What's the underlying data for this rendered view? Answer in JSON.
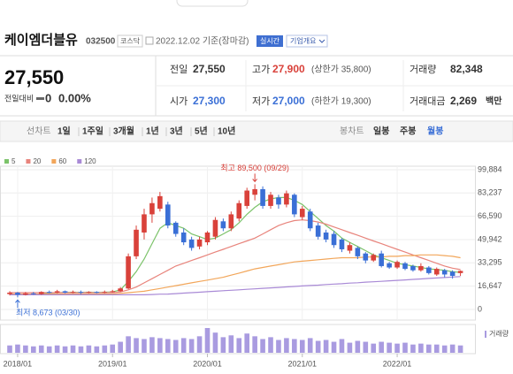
{
  "header": {
    "name": "케이엠더블유",
    "code": "032500",
    "market": "코스닥",
    "date": "2022.12.02 기준(장마감)",
    "realtime": "실시간",
    "overview": "기업개요"
  },
  "quote": {
    "price": "27,550",
    "change_label": "전일대비",
    "change": "0",
    "change_pct": "0.00%"
  },
  "table": {
    "rows": [
      [
        [
          "전일",
          "27,550"
        ],
        [
          "고가",
          "27,900",
          "(상한가 35,800)"
        ],
        [
          "거래량",
          "82,348"
        ]
      ],
      [
        [
          "시가",
          "27,300"
        ],
        [
          "저가",
          "27,000",
          "(하한가 19,300)"
        ],
        [
          "거래대금",
          "2,269",
          "백만"
        ]
      ]
    ]
  },
  "tabs": {
    "line": "선차트",
    "periods": [
      "1일",
      "1주일",
      "3개월",
      "1년",
      "3년",
      "5년",
      "10년"
    ],
    "candle": "봉차트",
    "candle_periods": [
      "일봉",
      "주봉",
      "월봉"
    ]
  },
  "chart_data": {
    "type": "candlestick",
    "categories": [
      null,
      "2018/01",
      null,
      null,
      null,
      null,
      null,
      null,
      null,
      null,
      null,
      null,
      null,
      "2019/01",
      null,
      null,
      null,
      null,
      null,
      null,
      null,
      null,
      null,
      null,
      null,
      "2020/01",
      null,
      null,
      null,
      null,
      null,
      null,
      null,
      null,
      null,
      null,
      null,
      "2021/01",
      null,
      null,
      null,
      null,
      null,
      null,
      null,
      null,
      null,
      null,
      null,
      "2022/01",
      null,
      null,
      null,
      null,
      null,
      null,
      null,
      null
    ],
    "ohlc": {
      "up_color": "#d9413a",
      "down_color": "#3a6fd6",
      "open": [
        11000,
        12000,
        10500,
        11500,
        11000,
        12500,
        12000,
        13000,
        12000,
        12500,
        12000,
        12500,
        12000,
        12500,
        13000,
        15000,
        38000,
        55000,
        68000,
        72000,
        75000,
        62000,
        55000,
        50000,
        45000,
        48000,
        52000,
        63000,
        58000,
        65000,
        74000,
        82000,
        86000,
        74000,
        80000,
        75000,
        82000,
        66000,
        70000,
        60000,
        55000,
        54000,
        50000,
        42000,
        44000,
        40000,
        35000,
        40000,
        33000,
        30000,
        33000,
        31000,
        28000,
        30000,
        25000,
        28000,
        27000,
        26000
      ],
      "high": [
        13000,
        12500,
        12500,
        12500,
        13000,
        13500,
        14000,
        13500,
        13500,
        13500,
        13000,
        13000,
        13500,
        14000,
        16000,
        40000,
        60000,
        72000,
        80000,
        84000,
        77000,
        63000,
        58000,
        52000,
        52000,
        56000,
        66000,
        65000,
        70000,
        78000,
        87000,
        89500,
        88000,
        84000,
        82000,
        85000,
        83000,
        74000,
        72000,
        62000,
        57000,
        56000,
        51000,
        48000,
        45000,
        41000,
        40000,
        42000,
        34000,
        35000,
        34000,
        32000,
        33000,
        31000,
        30000,
        29000,
        28000,
        27900
      ],
      "low": [
        10000,
        8673,
        10000,
        10500,
        10500,
        11500,
        11500,
        11500,
        11500,
        11000,
        11500,
        11500,
        11500,
        12000,
        12500,
        14500,
        36000,
        50000,
        62000,
        70000,
        58000,
        52000,
        46000,
        42000,
        43000,
        46000,
        50000,
        56000,
        56000,
        63000,
        72000,
        78000,
        72000,
        72000,
        72000,
        73000,
        66000,
        64000,
        56000,
        50000,
        48000,
        44000,
        41000,
        40000,
        36000,
        33000,
        34000,
        30000,
        29000,
        29000,
        28000,
        27000,
        27000,
        25000,
        24000,
        23000,
        22000,
        24000
      ],
      "close": [
        12000,
        10500,
        11500,
        11000,
        12500,
        12000,
        13000,
        12000,
        12500,
        12000,
        12500,
        12000,
        12500,
        13000,
        15000,
        38000,
        57000,
        68000,
        76000,
        81000,
        60000,
        54000,
        48000,
        44000,
        50000,
        55000,
        64000,
        58000,
        68000,
        76000,
        85000,
        86000,
        74000,
        82000,
        75000,
        83000,
        68000,
        72000,
        58000,
        52000,
        50000,
        46000,
        43000,
        46000,
        38000,
        35000,
        39000,
        31000,
        30000,
        34000,
        29000,
        28000,
        31000,
        26000,
        29000,
        25000,
        24000,
        27550
      ]
    },
    "series": [
      {
        "name": "5",
        "color": "#7cc36a",
        "values": [
          null,
          null,
          null,
          null,
          11500,
          11800,
          12000,
          12200,
          12300,
          12200,
          12300,
          12200,
          12300,
          12500,
          14000,
          20000,
          27000,
          36000,
          47000,
          58000,
          62000,
          60000,
          58000,
          54000,
          52000,
          50000,
          51000,
          54000,
          57000,
          62000,
          68000,
          73000,
          77000,
          79000,
          80000,
          80000,
          78000,
          75000,
          70000,
          65000,
          60000,
          56000,
          51000,
          48000,
          45000,
          42000,
          39000,
          37000,
          35000,
          33000,
          32000,
          31000,
          30000,
          29000,
          28500,
          28000,
          27000,
          26500
        ]
      },
      {
        "name": "20",
        "color": "#e8847c",
        "values": [
          12000,
          12000,
          12000,
          12000,
          12000,
          12000,
          12000,
          12000,
          12000,
          12000,
          12000,
          12000,
          12000,
          12000,
          12500,
          14000,
          16000,
          19000,
          22000,
          25000,
          28000,
          31000,
          33000,
          35000,
          37000,
          39000,
          41000,
          43000,
          45000,
          47000,
          49000,
          51000,
          54000,
          57000,
          60000,
          62000,
          63500,
          64000,
          63500,
          62500,
          61000,
          59000,
          57000,
          55000,
          53000,
          51000,
          49000,
          47000,
          45000,
          43000,
          41000,
          39000,
          37000,
          35000,
          33000,
          31000,
          29500,
          28500
        ]
      },
      {
        "name": "60",
        "color": "#f2a65a",
        "values": [
          11000,
          11000,
          11000,
          11000,
          11000,
          11000,
          11000,
          11000,
          11000,
          11000,
          11000,
          11000,
          11000,
          11000,
          11500,
          12000,
          12500,
          13000,
          14000,
          15000,
          16000,
          17000,
          18000,
          19000,
          20000,
          21000,
          22000,
          23000,
          24500,
          26000,
          27500,
          29000,
          30000,
          31000,
          32000,
          33000,
          34000,
          34500,
          35000,
          35500,
          36000,
          36500,
          37000,
          37000,
          37000,
          37500,
          37500,
          37500,
          38000,
          38000,
          38500,
          38500,
          39000,
          39000,
          39000,
          38500,
          38000,
          37000
        ]
      },
      {
        "name": "120",
        "color": "#a98ad6",
        "values": [
          10500,
          10500,
          10500,
          10500,
          10500,
          10500,
          10500,
          10500,
          10500,
          10500,
          10500,
          10500,
          10500,
          10500,
          10500,
          10500,
          10500,
          10500,
          10700,
          10900,
          11000,
          11300,
          11700,
          12000,
          12300,
          12700,
          13000,
          13400,
          13700,
          14000,
          14400,
          14700,
          15100,
          15400,
          15700,
          16100,
          16400,
          16800,
          17100,
          17400,
          17800,
          18100,
          18400,
          18800,
          19100,
          19500,
          19800,
          20100,
          20500,
          20800,
          21100,
          21500,
          21800,
          22200,
          22500,
          22800,
          23200,
          23500
        ]
      }
    ],
    "volume": {
      "name": "거래량",
      "color": "#a99be0",
      "values": [
        8,
        9,
        8,
        7,
        8,
        7,
        8,
        7,
        8,
        7,
        8,
        7,
        8,
        9,
        12,
        18,
        16,
        15,
        17,
        16,
        15,
        14,
        16,
        15,
        18,
        27,
        22,
        17,
        19,
        16,
        21,
        18,
        15,
        17,
        14,
        16,
        15,
        14,
        16,
        13,
        14,
        12,
        15,
        11,
        13,
        12,
        10,
        12,
        11,
        10,
        11,
        9,
        10,
        9,
        9,
        8,
        9,
        8
      ]
    },
    "annotations": {
      "high": "최고 89,500 (09/29)",
      "low": "최저 8,673 (03/30)"
    },
    "ylim": [
      -7600,
      102400
    ],
    "yticks": [
      {
        "value": 99884,
        "label": "99,884"
      },
      {
        "value": 83237,
        "label": "83,237"
      },
      {
        "value": 66590,
        "label": "66,590"
      },
      {
        "value": 49942,
        "label": "49,942"
      },
      {
        "value": 33295,
        "label": "33,295"
      },
      {
        "value": 16647,
        "label": "16,647"
      },
      0
    ],
    "grid": true
  }
}
